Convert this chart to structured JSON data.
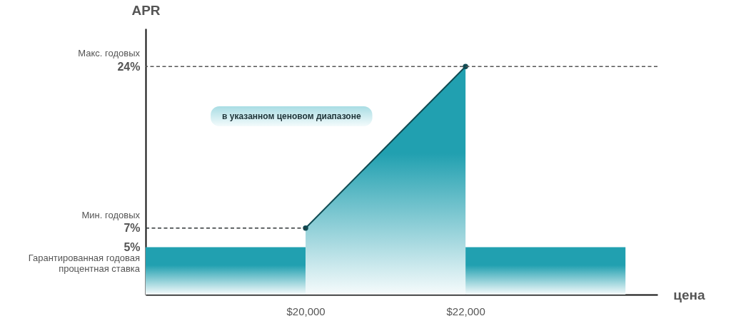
{
  "chart_data": {
    "type": "area",
    "xlabel": "цена",
    "ylabel": "APR",
    "xlim": [
      18000,
      24400
    ],
    "xticks": [
      {
        "value": 20000,
        "label": "$20,000"
      },
      {
        "value": 22000,
        "label": "$22,000"
      }
    ],
    "ylim": [
      0,
      28
    ],
    "yticks": [
      {
        "value": 5,
        "label": "5%"
      },
      {
        "value": 7,
        "label": "7%"
      },
      {
        "value": 24,
        "label": "24%"
      }
    ],
    "series": [
      {
        "color": "#21a0b0",
        "x": [
          18000,
          20000
        ],
        "values": [
          5,
          5
        ]
      },
      {
        "color": "#21a0b0",
        "x": [
          20000,
          22000
        ],
        "values": [
          7,
          24
        ],
        "marker": "circle",
        "line_style": "solid"
      },
      {
        "color": "#21a0b0",
        "x": [
          22000,
          24000
        ],
        "values": [
          5,
          5
        ]
      },
      {
        "type": "line",
        "color": "#2e3436",
        "x": [
          18000,
          20000
        ],
        "values": [
          7,
          7
        ],
        "line_style": "dashed"
      }
    ],
    "ref_lines": [
      {
        "axis": "y",
        "value": 24,
        "line_style": "dashed",
        "color": "#555555"
      }
    ],
    "annotations": [
      "Макс. годовых",
      "Мин. годовых",
      "Гарантированная годовая процентная ставка",
      "в указанном ценовом диапазоне"
    ]
  }
}
